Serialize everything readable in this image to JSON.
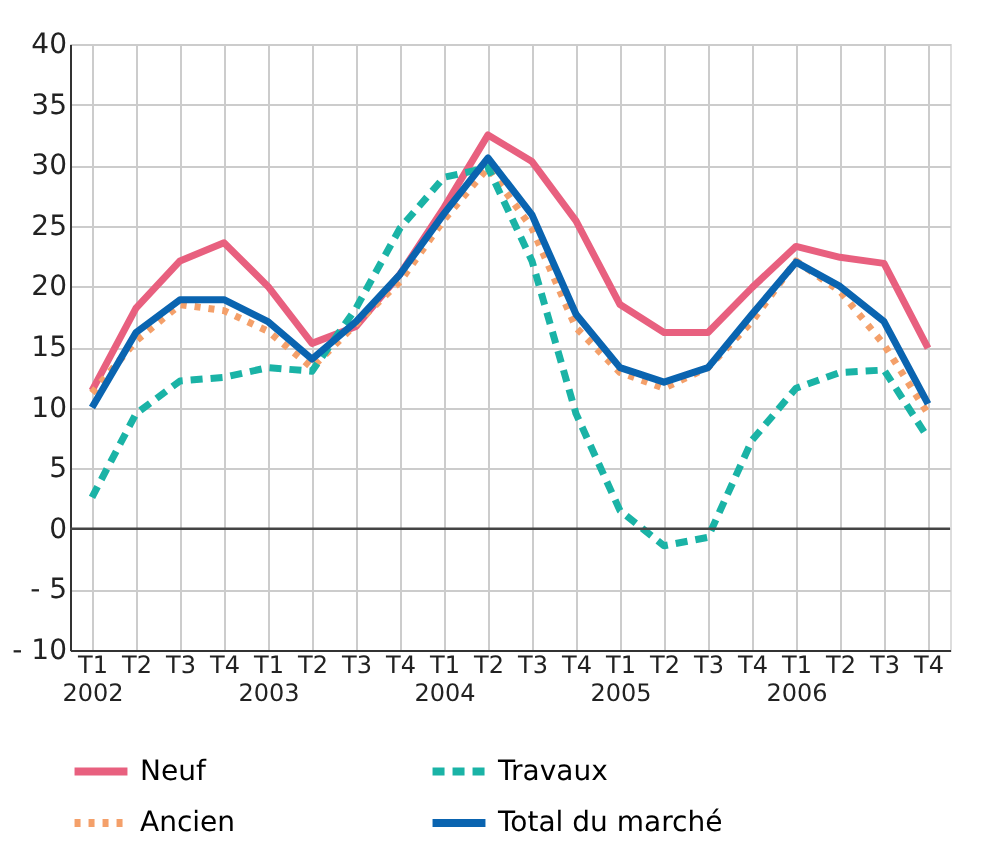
{
  "chart_data": {
    "type": "line",
    "categories": [
      "T1\n2002",
      "T2",
      "T3",
      "T4",
      "T1\n2003",
      "T2",
      "T3",
      "T4",
      "T1\n2004",
      "T2",
      "T3",
      "T4",
      "T1\n2005",
      "T2",
      "T3",
      "T4",
      "T1\n2006",
      "T2",
      "T3",
      "T4"
    ],
    "series": [
      {
        "name": "Neuf",
        "color": "#e8607f",
        "line_style": "solid",
        "values": [
          11.4,
          18.2,
          22.1,
          23.6,
          20.0,
          15.3,
          16.7,
          21.0,
          26.5,
          32.5,
          30.3,
          25.4,
          18.5,
          16.2,
          16.2,
          19.9,
          23.3,
          22.4,
          21.9,
          14.9
        ]
      },
      {
        "name": "Ancien",
        "color": "#f4a06a",
        "line_style": "dotted",
        "values": [
          11.2,
          15.5,
          18.5,
          18.0,
          16.3,
          13.3,
          16.9,
          20.4,
          25.5,
          29.8,
          24.8,
          16.6,
          12.9,
          11.6,
          13.3,
          17.1,
          22.1,
          19.6,
          15.2,
          9.5
        ]
      },
      {
        "name": "Travaux",
        "color": "#1ab3a6",
        "line_style": "dashed",
        "values": [
          2.6,
          9.5,
          12.2,
          12.5,
          13.3,
          13.0,
          18.2,
          24.8,
          29.0,
          29.8,
          22.1,
          9.5,
          1.5,
          -1.4,
          -0.7,
          7.3,
          11.6,
          12.9,
          13.1,
          7.5
        ]
      },
      {
        "name": "Total du marché",
        "color": "#0a64b0",
        "line_style": "solid",
        "values": [
          10.0,
          16.2,
          18.9,
          18.9,
          17.1,
          14.0,
          17.1,
          21.0,
          26.0,
          30.6,
          25.9,
          17.7,
          13.3,
          12.1,
          13.3,
          17.7,
          22.0,
          20.0,
          17.1,
          10.3
        ]
      }
    ],
    "ylim": [
      -10,
      40
    ],
    "yticks": [
      {
        "value": -10,
        "label": "- 10"
      },
      {
        "value": -5,
        "label": "- 5"
      },
      0,
      5,
      10,
      15,
      20,
      25,
      30,
      35,
      40
    ],
    "ref_lines": [
      {
        "axis": "y",
        "value": 0,
        "label": null,
        "color": "#444444"
      }
    ],
    "grid": true,
    "legend": "bottom"
  }
}
